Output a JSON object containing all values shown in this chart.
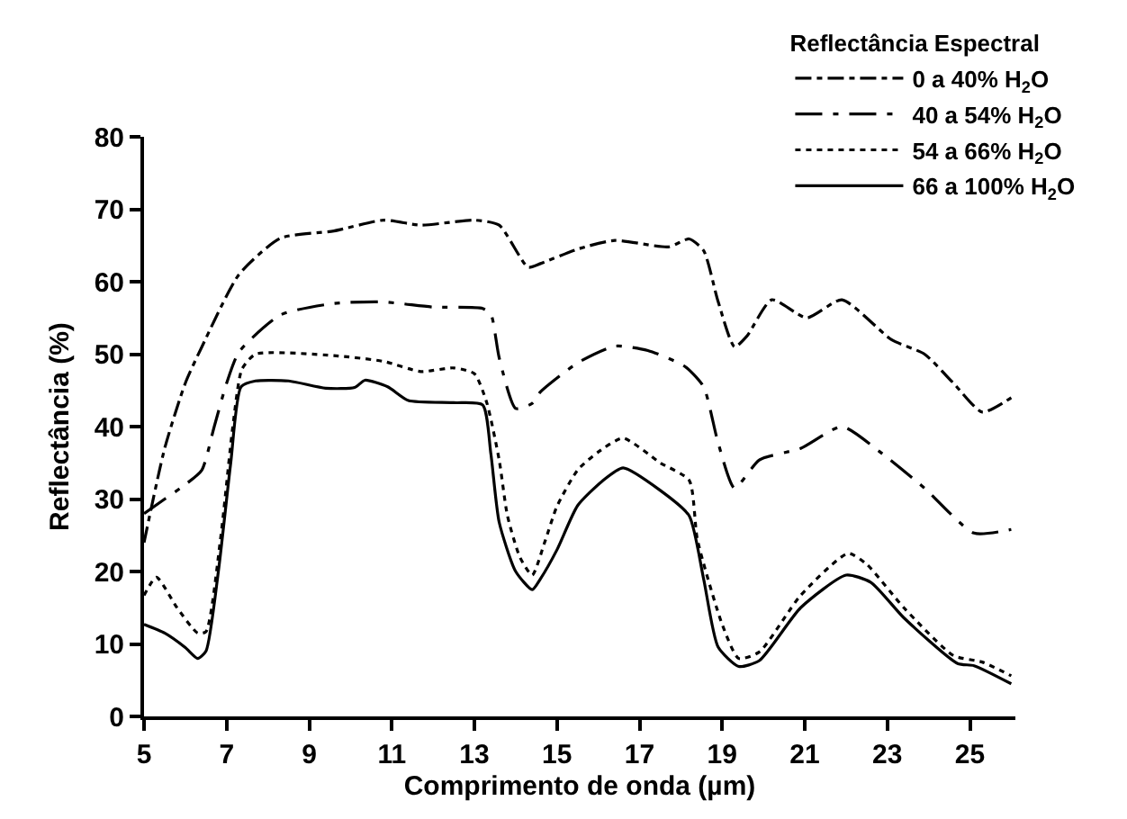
{
  "chart_data": {
    "type": "line",
    "xlabel": "Comprimento de onda (µm)",
    "ylabel": "Reflectância (%)",
    "legend_title": "Reflectância Espectral",
    "xlim": [
      5,
      26.1
    ],
    "xticks": [
      5,
      7,
      9,
      11,
      13,
      15,
      17,
      19,
      21,
      23,
      25
    ],
    "ylim": [
      0,
      80
    ],
    "yticks": [
      0,
      10,
      20,
      30,
      40,
      50,
      60,
      70,
      80
    ],
    "legend": "top right",
    "marker": "none",
    "series": [
      {
        "name": "0 a 40% H$_{2}$O",
        "color": "#000000",
        "line_style": "dashdot",
        "x": [
          5,
          5.5,
          6,
          6.4,
          7.3,
          8.3,
          9.6,
          10.8,
          11.7,
          13,
          13.6,
          14.3,
          14.6,
          15.5,
          16.4,
          17.7,
          18.2,
          18.55,
          18.9,
          19.3,
          19.6,
          20.2,
          21.05,
          21.9,
          23.1,
          23.9,
          24.6,
          25.3,
          26
        ],
        "values": [
          24,
          37,
          46,
          51,
          61,
          66,
          67,
          68.5,
          67.8,
          68.5,
          67.8,
          62,
          62.5,
          64.5,
          65.7,
          64.8,
          65.9,
          64.3,
          57.3,
          51,
          52.5,
          57.5,
          55,
          57.5,
          52,
          50,
          46,
          42,
          44
        ]
      },
      {
        "name": "40 a 54% H$_{2}$O",
        "color": "#000000",
        "line_style": "longdashdot",
        "x": [
          5,
          5.5,
          6,
          6.4,
          6.7,
          7,
          7.3,
          8.3,
          9.6,
          10.8,
          12,
          13.2,
          13.4,
          13.6,
          14,
          14.4,
          14.6,
          15.5,
          16.4,
          17.2,
          18.1,
          18.55,
          18.9,
          19.3,
          19.9,
          20.9,
          21.9,
          22.8,
          23.9,
          25.1,
          26
        ],
        "values": [
          28,
          30,
          32,
          34,
          40,
          46,
          50.3,
          55.4,
          57,
          57.2,
          56.5,
          56.3,
          55.5,
          49.5,
          42.5,
          43.2,
          44.8,
          48.8,
          51.1,
          50.5,
          48.3,
          45.5,
          37.8,
          31.5,
          35.4,
          37,
          40,
          36.6,
          31.5,
          25.3,
          25.8
        ]
      },
      {
        "name": "54 a 66% H$_{2}$O",
        "color": "#000000",
        "line_style": "dotted",
        "x": [
          5,
          5.3,
          5.8,
          6.3,
          6.5,
          6.85,
          7.15,
          7.37,
          7.7,
          9.6,
          10.8,
          11.7,
          12.5,
          13,
          13.3,
          13.6,
          13.8,
          14.1,
          14.4,
          14.7,
          15,
          15.5,
          16,
          16.6,
          17.5,
          18.2,
          18.4,
          19,
          19.4,
          19.9,
          20.9,
          22.05,
          22.5,
          23.4,
          24.6,
          25.3,
          26
        ],
        "values": [
          16.7,
          19.2,
          15,
          11.5,
          11.7,
          24.4,
          40,
          47.9,
          50,
          49.8,
          49,
          47.6,
          48.1,
          47.3,
          43.3,
          35.4,
          27.7,
          22,
          19.5,
          24,
          29,
          34,
          36.5,
          38.4,
          35,
          32.6,
          24.4,
          12.7,
          8,
          8.9,
          16.7,
          22.5,
          21,
          15,
          8.4,
          7.5,
          5.6
        ]
      },
      {
        "name": "66 a 100% H$_{2}$O",
        "color": "#000000",
        "line_style": "solid",
        "x": [
          5,
          5.5,
          6,
          6.3,
          6.5,
          6.8,
          7.1,
          7.35,
          7.7,
          8.5,
          9.4,
          10.1,
          10.35,
          10.9,
          11.4,
          12.5,
          13.2,
          13.4,
          13.6,
          14,
          14.4,
          14.6,
          15,
          15.5,
          16.1,
          16.6,
          17.5,
          18.2,
          18.55,
          18.9,
          19.4,
          19.9,
          20.9,
          22,
          22.6,
          23.4,
          24.7,
          25.1,
          26
        ],
        "values": [
          12.7,
          11.5,
          9.5,
          8,
          9,
          20,
          35,
          45.5,
          46.3,
          46.3,
          45.3,
          45.4,
          46.4,
          45.5,
          43.6,
          43.3,
          43,
          36.2,
          26.8,
          20,
          17.5,
          19,
          23,
          29.1,
          32.5,
          34.3,
          31.2,
          27.7,
          19,
          9.6,
          6.9,
          7.7,
          15,
          19.5,
          18.5,
          13.6,
          7.3,
          7,
          4.5
        ]
      }
    ]
  }
}
